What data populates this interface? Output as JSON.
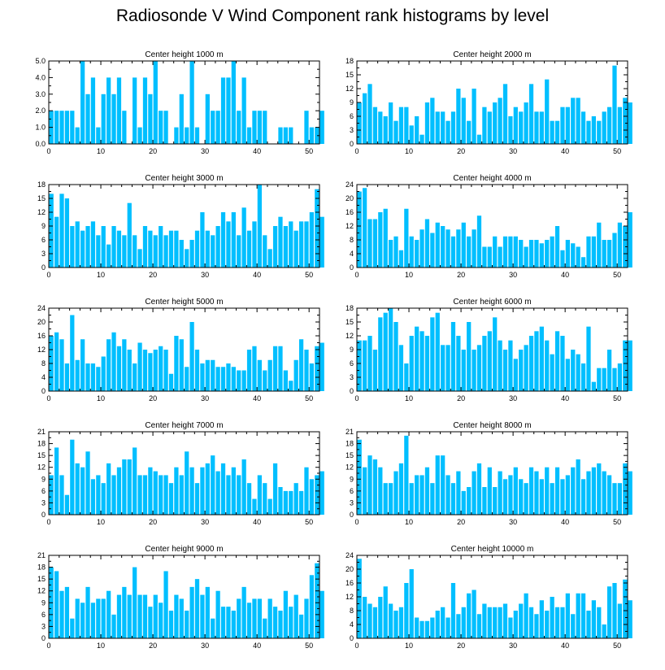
{
  "title": "Radiosonde V Wind Component rank histograms by level",
  "colors": {
    "bar": "#00bfff",
    "axis": "#000000",
    "background": "#ffffff"
  },
  "chart_data": [
    {
      "type": "bar",
      "title": "Center height 1000 m",
      "xlim": [
        0,
        52
      ],
      "ylim": [
        0,
        5
      ],
      "xticks": [
        0,
        10,
        20,
        30,
        40,
        50
      ],
      "yticks": [
        0,
        1,
        2,
        3,
        4,
        5
      ],
      "ytick_labels": [
        "0.0",
        "1.0",
        "2.0",
        "3.0",
        "4.0",
        "5.0"
      ],
      "values": [
        2,
        2,
        2,
        2,
        2,
        1,
        5,
        3,
        4,
        1,
        3,
        4,
        3,
        4,
        2,
        0,
        4,
        1,
        4,
        3,
        5,
        2,
        2,
        0,
        1,
        3,
        1,
        5,
        1,
        0,
        3,
        2,
        2,
        4,
        4,
        5,
        2,
        4,
        1,
        2,
        2,
        2,
        0,
        0,
        1,
        1,
        1,
        0,
        0,
        2,
        1,
        1,
        2
      ]
    },
    {
      "type": "bar",
      "title": "Center height 2000 m",
      "xlim": [
        0,
        52
      ],
      "ylim": [
        0,
        18
      ],
      "xticks": [
        0,
        10,
        20,
        30,
        40,
        50
      ],
      "yticks": [
        0,
        3,
        6,
        9,
        12,
        15,
        18
      ],
      "ytick_labels": [
        "0",
        "3",
        "6",
        "9",
        "12",
        "15",
        "18"
      ],
      "values": [
        9,
        11,
        13,
        8,
        7,
        6,
        9,
        5,
        8,
        8,
        4,
        6,
        2,
        9,
        10,
        7,
        7,
        5,
        7,
        12,
        10,
        5,
        12,
        2,
        8,
        7,
        9,
        10,
        13,
        6,
        8,
        7,
        9,
        13,
        7,
        7,
        14,
        5,
        5,
        8,
        8,
        10,
        10,
        7,
        5,
        6,
        5,
        7,
        8,
        17,
        8,
        10,
        9
      ]
    },
    {
      "type": "bar",
      "title": "Center height 3000 m",
      "xlim": [
        0,
        52
      ],
      "ylim": [
        0,
        18
      ],
      "xticks": [
        0,
        10,
        20,
        30,
        40,
        50
      ],
      "yticks": [
        0,
        3,
        6,
        9,
        12,
        15,
        18
      ],
      "ytick_labels": [
        "0",
        "3",
        "6",
        "9",
        "12",
        "15",
        "18"
      ],
      "values": [
        16,
        11,
        16,
        15,
        9,
        10,
        8,
        9,
        10,
        7,
        9,
        5,
        9,
        8,
        7,
        14,
        7,
        4,
        9,
        8,
        7,
        9,
        7,
        8,
        8,
        6,
        4,
        6,
        8,
        12,
        8,
        7,
        9,
        12,
        10,
        12,
        7,
        13,
        8,
        10,
        18,
        7,
        4,
        9,
        11,
        9,
        10,
        8,
        10,
        10,
        12,
        17,
        11
      ]
    },
    {
      "type": "bar",
      "title": "Center height 4000 m",
      "xlim": [
        0,
        52
      ],
      "ylim": [
        0,
        24
      ],
      "xticks": [
        0,
        10,
        20,
        30,
        40,
        50
      ],
      "yticks": [
        0,
        4,
        8,
        12,
        16,
        20,
        24
      ],
      "ytick_labels": [
        "0",
        "4",
        "8",
        "12",
        "16",
        "20",
        "24"
      ],
      "values": [
        22,
        23,
        14,
        14,
        16,
        17,
        8,
        9,
        5,
        17,
        9,
        8,
        11,
        14,
        10,
        13,
        12,
        11,
        9,
        11,
        13,
        9,
        11,
        15,
        6,
        6,
        9,
        6,
        9,
        9,
        9,
        8,
        6,
        8,
        8,
        7,
        8,
        9,
        12,
        5,
        8,
        7,
        6,
        3,
        9,
        9,
        13,
        8,
        8,
        10,
        13,
        12,
        16
      ]
    },
    {
      "type": "bar",
      "title": "Center height 5000 m",
      "xlim": [
        0,
        52
      ],
      "ylim": [
        0,
        24
      ],
      "xticks": [
        0,
        10,
        20,
        30,
        40,
        50
      ],
      "yticks": [
        0,
        4,
        8,
        12,
        16,
        20,
        24
      ],
      "ytick_labels": [
        "0",
        "4",
        "8",
        "12",
        "16",
        "20",
        "24"
      ],
      "values": [
        16,
        17,
        15,
        8,
        22,
        9,
        15,
        8,
        8,
        7,
        10,
        15,
        17,
        13,
        15,
        12,
        8,
        14,
        12,
        11,
        12,
        13,
        12,
        5,
        16,
        15,
        7,
        20,
        12,
        8,
        9,
        9,
        7,
        7,
        8,
        7,
        6,
        6,
        12,
        13,
        9,
        6,
        9,
        13,
        13,
        6,
        3,
        9,
        15,
        12,
        8,
        13,
        14
      ]
    },
    {
      "type": "bar",
      "title": "Center height 6000 m",
      "xlim": [
        0,
        52
      ],
      "ylim": [
        0,
        18
      ],
      "xticks": [
        0,
        10,
        20,
        30,
        40,
        50
      ],
      "yticks": [
        0,
        3,
        6,
        9,
        12,
        15,
        18
      ],
      "ytick_labels": [
        "0",
        "3",
        "6",
        "9",
        "12",
        "15",
        "18"
      ],
      "values": [
        11,
        11,
        12,
        9,
        16,
        17,
        18,
        15,
        10,
        6,
        12,
        14,
        13,
        12,
        16,
        17,
        10,
        10,
        15,
        12,
        9,
        15,
        9,
        10,
        12,
        13,
        16,
        11,
        9,
        11,
        7,
        9,
        10,
        12,
        13,
        14,
        11,
        8,
        13,
        12,
        7,
        9,
        8,
        6,
        14,
        2,
        5,
        5,
        9,
        5,
        6,
        11,
        11
      ]
    },
    {
      "type": "bar",
      "title": "Center height 7000 m",
      "xlim": [
        0,
        52
      ],
      "ylim": [
        0,
        21
      ],
      "xticks": [
        0,
        10,
        20,
        30,
        40,
        50
      ],
      "yticks": [
        0,
        3,
        6,
        9,
        12,
        15,
        18,
        21
      ],
      "ytick_labels": [
        "0",
        "3",
        "6",
        "9",
        "12",
        "15",
        "18",
        "21"
      ],
      "values": [
        10,
        17,
        10,
        5,
        19,
        13,
        12,
        16,
        9,
        10,
        8,
        13,
        10,
        12,
        14,
        14,
        17,
        10,
        10,
        12,
        11,
        10,
        10,
        8,
        12,
        10,
        16,
        12,
        8,
        12,
        13,
        15,
        11,
        13,
        10,
        12,
        10,
        14,
        8,
        4,
        10,
        8,
        4,
        13,
        7,
        6,
        6,
        8,
        6,
        12,
        9,
        10,
        11
      ]
    },
    {
      "type": "bar",
      "title": "Center height 8000 m",
      "xlim": [
        0,
        52
      ],
      "ylim": [
        0,
        21
      ],
      "xticks": [
        0,
        10,
        20,
        30,
        40,
        50
      ],
      "yticks": [
        0,
        3,
        6,
        9,
        12,
        15,
        18,
        21
      ],
      "ytick_labels": [
        "0",
        "3",
        "6",
        "9",
        "12",
        "15",
        "18",
        "21"
      ],
      "values": [
        19,
        12,
        15,
        14,
        12,
        8,
        8,
        11,
        13,
        20,
        8,
        10,
        10,
        12,
        8,
        15,
        15,
        10,
        8,
        11,
        6,
        7,
        11,
        13,
        7,
        12,
        7,
        11,
        9,
        10,
        12,
        9,
        8,
        12,
        11,
        9,
        12,
        8,
        12,
        9,
        10,
        12,
        14,
        9,
        11,
        12,
        13,
        11,
        10,
        8,
        8,
        13,
        11
      ]
    },
    {
      "type": "bar",
      "title": "Center height 9000 m",
      "xlim": [
        0,
        52
      ],
      "ylim": [
        0,
        21
      ],
      "xticks": [
        0,
        10,
        20,
        30,
        40,
        50
      ],
      "yticks": [
        0,
        3,
        6,
        9,
        12,
        15,
        18,
        21
      ],
      "ytick_labels": [
        "0",
        "3",
        "6",
        "9",
        "12",
        "15",
        "18",
        "21"
      ],
      "values": [
        18,
        17,
        12,
        13,
        5,
        10,
        9,
        13,
        9,
        10,
        10,
        12,
        6,
        11,
        13,
        11,
        18,
        11,
        11,
        8,
        11,
        9,
        17,
        7,
        11,
        10,
        7,
        13,
        15,
        11,
        13,
        5,
        12,
        8,
        8,
        7,
        10,
        13,
        9,
        10,
        10,
        5,
        10,
        8,
        7,
        12,
        8,
        11,
        6,
        10,
        16,
        19,
        12
      ]
    },
    {
      "type": "bar",
      "title": "Center height 10000 m",
      "xlim": [
        0,
        52
      ],
      "ylim": [
        0,
        24
      ],
      "xticks": [
        0,
        10,
        20,
        30,
        40,
        50
      ],
      "yticks": [
        0,
        4,
        8,
        12,
        16,
        20,
        24
      ],
      "ytick_labels": [
        "0",
        "4",
        "8",
        "12",
        "16",
        "20",
        "24"
      ],
      "values": [
        23,
        12,
        10,
        9,
        12,
        15,
        10,
        8,
        9,
        16,
        20,
        6,
        5,
        5,
        6,
        8,
        9,
        6,
        16,
        7,
        9,
        13,
        14,
        7,
        10,
        9,
        9,
        9,
        10,
        6,
        8,
        10,
        13,
        9,
        7,
        11,
        8,
        12,
        9,
        9,
        13,
        7,
        13,
        13,
        8,
        11,
        9,
        4,
        15,
        16,
        10,
        17,
        11
      ]
    }
  ]
}
